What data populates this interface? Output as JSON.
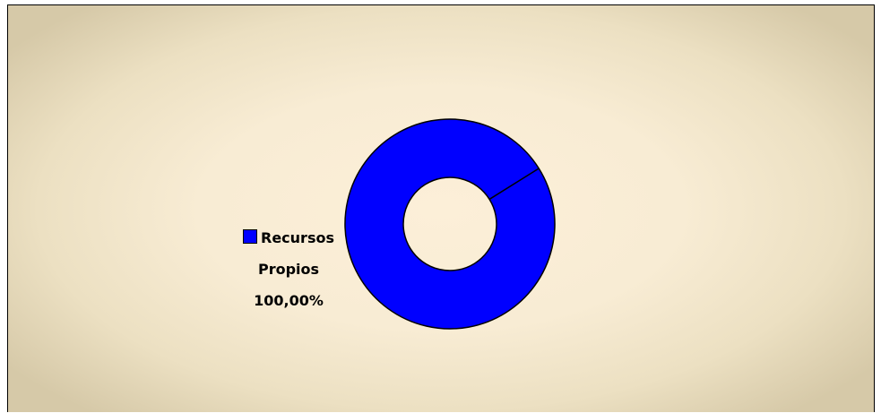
{
  "chart_data": {
    "type": "donut",
    "categories": [
      "Recursos Propios"
    ],
    "values": [
      100
    ],
    "value_labels": [
      "100,00%"
    ],
    "colors": [
      "#0000ff"
    ]
  }
}
